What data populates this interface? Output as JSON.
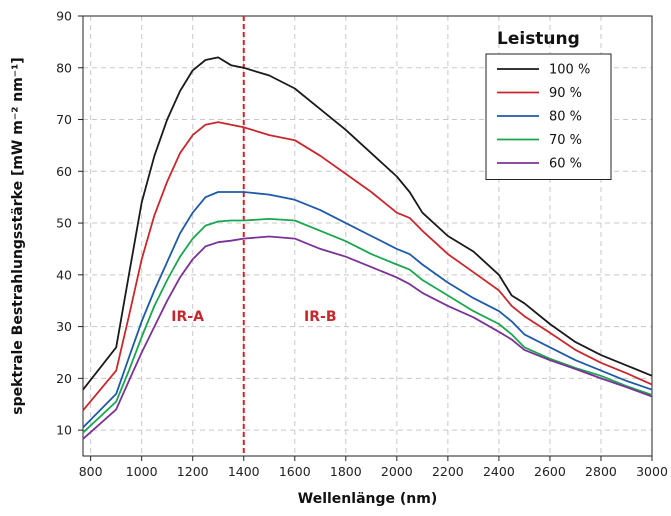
{
  "chart_data": {
    "type": "line",
    "xlabel": "Wellenlänge (nm)",
    "ylabel": "spektrale Bestrahlungsstärke [mW m⁻² nm⁻¹]",
    "xlim": [
      770,
      3000
    ],
    "ylim": [
      5,
      90
    ],
    "x_ticks": [
      800,
      1000,
      1200,
      1400,
      1600,
      1800,
      2000,
      2200,
      2400,
      2600,
      2800,
      3000
    ],
    "y_ticks": [
      10,
      20,
      30,
      40,
      50,
      60,
      70,
      80,
      90
    ],
    "grid": true,
    "legend_title": "Leistung",
    "legend_position": "top-right",
    "regions": [
      {
        "label": "IR-A",
        "x": 1180,
        "y": 32
      },
      {
        "label": "IR-B",
        "x": 1700,
        "y": 32
      }
    ],
    "divider_x": 1400,
    "colors": {
      "s100": "#1a1a1a",
      "s90": "#c8282d",
      "s80": "#1f5aa6",
      "s70": "#1aa64e",
      "s60": "#7b3294",
      "divider": "#d4202a",
      "region_label": "#c8282d"
    },
    "series": [
      {
        "name": "100 %",
        "color": "#1a1a1a",
        "points": [
          [
            770,
            17.8
          ],
          [
            900,
            26
          ],
          [
            950,
            40
          ],
          [
            1000,
            54
          ],
          [
            1050,
            63
          ],
          [
            1100,
            70
          ],
          [
            1150,
            75.5
          ],
          [
            1200,
            79.5
          ],
          [
            1250,
            81.5
          ],
          [
            1300,
            82
          ],
          [
            1350,
            80.5
          ],
          [
            1400,
            80
          ],
          [
            1500,
            78.5
          ],
          [
            1600,
            76
          ],
          [
            1700,
            72
          ],
          [
            1800,
            68
          ],
          [
            1900,
            63.5
          ],
          [
            2000,
            59
          ],
          [
            2050,
            56
          ],
          [
            2100,
            52
          ],
          [
            2200,
            47.5
          ],
          [
            2300,
            44.5
          ],
          [
            2400,
            40
          ],
          [
            2450,
            36
          ],
          [
            2500,
            34.5
          ],
          [
            2600,
            30.5
          ],
          [
            2700,
            27
          ],
          [
            2800,
            24.5
          ],
          [
            2900,
            22.5
          ],
          [
            3000,
            20.5
          ]
        ]
      },
      {
        "name": "90 %",
        "color": "#c8282d",
        "points": [
          [
            770,
            13.8
          ],
          [
            900,
            21.5
          ],
          [
            950,
            32
          ],
          [
            1000,
            43
          ],
          [
            1050,
            51.5
          ],
          [
            1100,
            58
          ],
          [
            1150,
            63.5
          ],
          [
            1200,
            67
          ],
          [
            1250,
            69
          ],
          [
            1300,
            69.5
          ],
          [
            1350,
            69
          ],
          [
            1400,
            68.5
          ],
          [
            1500,
            67
          ],
          [
            1600,
            66
          ],
          [
            1700,
            63
          ],
          [
            1800,
            59.5
          ],
          [
            1900,
            56
          ],
          [
            2000,
            52
          ],
          [
            2050,
            51
          ],
          [
            2100,
            48.5
          ],
          [
            2200,
            44
          ],
          [
            2300,
            40.5
          ],
          [
            2400,
            37
          ],
          [
            2450,
            34
          ],
          [
            2500,
            32
          ],
          [
            2600,
            28.8
          ],
          [
            2700,
            25.5
          ],
          [
            2800,
            23
          ],
          [
            2900,
            21
          ],
          [
            3000,
            18.8
          ]
        ]
      },
      {
        "name": "80 %",
        "color": "#1f5aa6",
        "points": [
          [
            770,
            10.5
          ],
          [
            900,
            17
          ],
          [
            950,
            24
          ],
          [
            1000,
            31
          ],
          [
            1050,
            37
          ],
          [
            1100,
            42.5
          ],
          [
            1150,
            48
          ],
          [
            1200,
            52
          ],
          [
            1250,
            55
          ],
          [
            1300,
            56
          ],
          [
            1350,
            56
          ],
          [
            1400,
            56
          ],
          [
            1500,
            55.5
          ],
          [
            1600,
            54.5
          ],
          [
            1700,
            52.5
          ],
          [
            1800,
            50
          ],
          [
            1900,
            47.5
          ],
          [
            2000,
            45
          ],
          [
            2050,
            44
          ],
          [
            2100,
            42
          ],
          [
            2200,
            38.5
          ],
          [
            2300,
            35.5
          ],
          [
            2400,
            33
          ],
          [
            2450,
            31
          ],
          [
            2500,
            28.5
          ],
          [
            2600,
            26
          ],
          [
            2700,
            23.5
          ],
          [
            2800,
            21.5
          ],
          [
            2900,
            19.5
          ],
          [
            3000,
            17.8
          ]
        ]
      },
      {
        "name": "70 %",
        "color": "#1aa64e",
        "points": [
          [
            770,
            9.5
          ],
          [
            900,
            15.5
          ],
          [
            950,
            21.5
          ],
          [
            1000,
            28
          ],
          [
            1050,
            34
          ],
          [
            1100,
            39
          ],
          [
            1150,
            43.5
          ],
          [
            1200,
            47
          ],
          [
            1250,
            49.5
          ],
          [
            1300,
            50.3
          ],
          [
            1350,
            50.5
          ],
          [
            1400,
            50.5
          ],
          [
            1500,
            50.8
          ],
          [
            1600,
            50.5
          ],
          [
            1700,
            48.5
          ],
          [
            1800,
            46.5
          ],
          [
            1900,
            44
          ],
          [
            2000,
            42
          ],
          [
            2050,
            41
          ],
          [
            2100,
            39
          ],
          [
            2200,
            36
          ],
          [
            2300,
            33
          ],
          [
            2400,
            30.5
          ],
          [
            2450,
            28.5
          ],
          [
            2500,
            26
          ],
          [
            2600,
            23.8
          ],
          [
            2700,
            22
          ],
          [
            2800,
            20.5
          ],
          [
            2900,
            18.5
          ],
          [
            3000,
            16.8
          ]
        ]
      },
      {
        "name": "60 %",
        "color": "#7b3294",
        "points": [
          [
            770,
            8.3
          ],
          [
            900,
            14
          ],
          [
            950,
            19.5
          ],
          [
            1000,
            25
          ],
          [
            1050,
            30
          ],
          [
            1100,
            35
          ],
          [
            1150,
            39.5
          ],
          [
            1200,
            43
          ],
          [
            1250,
            45.5
          ],
          [
            1300,
            46.3
          ],
          [
            1350,
            46.6
          ],
          [
            1400,
            47
          ],
          [
            1500,
            47.4
          ],
          [
            1600,
            47
          ],
          [
            1700,
            45
          ],
          [
            1800,
            43.5
          ],
          [
            1900,
            41.5
          ],
          [
            2000,
            39.5
          ],
          [
            2050,
            38.2
          ],
          [
            2100,
            36.5
          ],
          [
            2200,
            34
          ],
          [
            2300,
            31.8
          ],
          [
            2400,
            29
          ],
          [
            2450,
            27.5
          ],
          [
            2500,
            25.5
          ],
          [
            2600,
            23.5
          ],
          [
            2700,
            21.8
          ],
          [
            2800,
            20
          ],
          [
            2900,
            18.3
          ],
          [
            3000,
            16.5
          ]
        ]
      }
    ]
  }
}
